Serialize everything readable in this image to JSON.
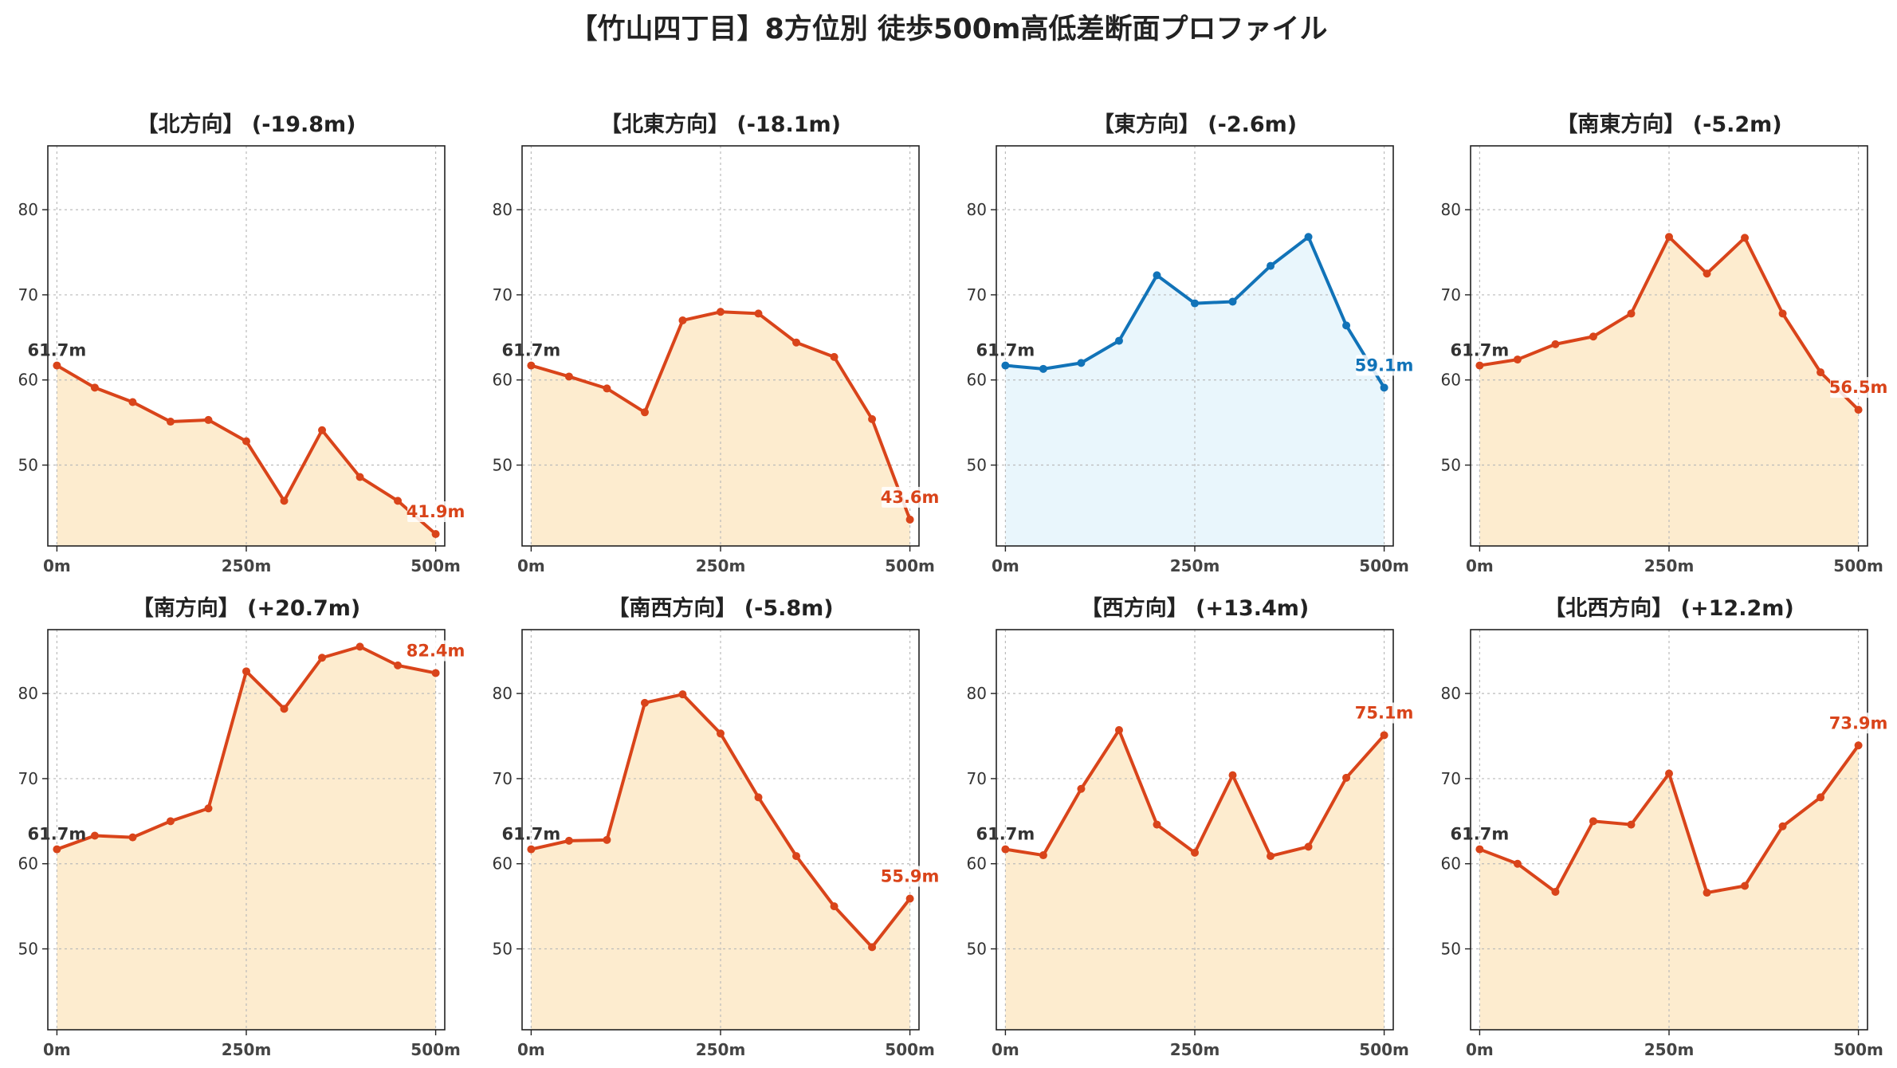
{
  "title": "【竹山四丁目】8方位別 徒歩500m高低差断面プロファイル",
  "colors": {
    "down_line": "#d9441a",
    "down_fill": "#fdeccf",
    "up_line": "#1173b8",
    "up_fill": "#e9f6fc",
    "start_label": "#333333"
  },
  "chart_data": [
    {
      "type": "area",
      "title": "【北方向】 (-19.8m)",
      "x": [
        0,
        50,
        100,
        150,
        200,
        250,
        300,
        350,
        400,
        450,
        500
      ],
      "y": [
        61.7,
        59.1,
        57.4,
        55.1,
        55.3,
        52.8,
        45.8,
        54.1,
        48.6,
        45.8,
        41.9
      ],
      "x_ticks": [
        "0m",
        "250m",
        "500m"
      ],
      "y_ticks": [
        "50",
        "60",
        "70",
        "80"
      ],
      "ylim": [
        40.5,
        87.5
      ],
      "xlim": [
        -12,
        512
      ],
      "grid": true,
      "start_label": "61.7m",
      "end_label": "41.9m",
      "style": "down"
    },
    {
      "type": "area",
      "title": "【北東方向】 (-18.1m)",
      "x": [
        0,
        50,
        100,
        150,
        200,
        250,
        300,
        350,
        400,
        450,
        500
      ],
      "y": [
        61.7,
        60.4,
        59.0,
        56.2,
        67.0,
        68.0,
        67.8,
        64.4,
        62.7,
        55.4,
        43.6
      ],
      "x_ticks": [
        "0m",
        "250m",
        "500m"
      ],
      "y_ticks": [
        "50",
        "60",
        "70",
        "80"
      ],
      "ylim": [
        40.5,
        87.5
      ],
      "xlim": [
        -12,
        512
      ],
      "grid": true,
      "start_label": "61.7m",
      "end_label": "43.6m",
      "style": "down"
    },
    {
      "type": "area",
      "title": "【東方向】 (-2.6m)",
      "x": [
        0,
        50,
        100,
        150,
        200,
        250,
        300,
        350,
        400,
        450,
        500
      ],
      "y": [
        61.7,
        61.3,
        62.0,
        64.6,
        72.3,
        69.0,
        69.2,
        73.4,
        76.8,
        66.4,
        59.1
      ],
      "x_ticks": [
        "0m",
        "250m",
        "500m"
      ],
      "y_ticks": [
        "50",
        "60",
        "70",
        "80"
      ],
      "ylim": [
        40.5,
        87.5
      ],
      "xlim": [
        -12,
        512
      ],
      "grid": true,
      "start_label": "61.7m",
      "end_label": "59.1m",
      "style": "up"
    },
    {
      "type": "area",
      "title": "【南東方向】 (-5.2m)",
      "x": [
        0,
        50,
        100,
        150,
        200,
        250,
        300,
        350,
        400,
        450,
        500
      ],
      "y": [
        61.7,
        62.4,
        64.2,
        65.1,
        67.8,
        76.8,
        72.5,
        76.7,
        67.8,
        60.9,
        56.5
      ],
      "x_ticks": [
        "0m",
        "250m",
        "500m"
      ],
      "y_ticks": [
        "50",
        "60",
        "70",
        "80"
      ],
      "ylim": [
        40.5,
        87.5
      ],
      "xlim": [
        -12,
        512
      ],
      "grid": true,
      "start_label": "61.7m",
      "end_label": "56.5m",
      "style": "down"
    },
    {
      "type": "area",
      "title": "【南方向】 (+20.7m)",
      "x": [
        0,
        50,
        100,
        150,
        200,
        250,
        300,
        350,
        400,
        450,
        500
      ],
      "y": [
        61.7,
        63.3,
        63.1,
        65.0,
        66.5,
        82.6,
        78.2,
        84.2,
        85.5,
        83.3,
        82.4
      ],
      "x_ticks": [
        "0m",
        "250m",
        "500m"
      ],
      "y_ticks": [
        "50",
        "60",
        "70",
        "80"
      ],
      "ylim": [
        40.5,
        87.5
      ],
      "xlim": [
        -12,
        512
      ],
      "grid": true,
      "start_label": "61.7m",
      "end_label": "82.4m",
      "style": "down"
    },
    {
      "type": "area",
      "title": "【南西方向】 (-5.8m)",
      "x": [
        0,
        50,
        100,
        150,
        200,
        250,
        300,
        350,
        400,
        450,
        500
      ],
      "y": [
        61.7,
        62.7,
        62.8,
        78.9,
        79.9,
        75.3,
        67.8,
        60.9,
        55.0,
        50.2,
        55.9
      ],
      "x_ticks": [
        "0m",
        "250m",
        "500m"
      ],
      "y_ticks": [
        "50",
        "60",
        "70",
        "80"
      ],
      "ylim": [
        40.5,
        87.5
      ],
      "xlim": [
        -12,
        512
      ],
      "grid": true,
      "start_label": "61.7m",
      "end_label": "55.9m",
      "style": "down"
    },
    {
      "type": "area",
      "title": "【西方向】 (+13.4m)",
      "x": [
        0,
        50,
        100,
        150,
        200,
        250,
        300,
        350,
        400,
        450,
        500
      ],
      "y": [
        61.7,
        61.0,
        68.8,
        75.7,
        64.6,
        61.3,
        70.4,
        60.9,
        62.0,
        70.1,
        75.1
      ],
      "x_ticks": [
        "0m",
        "250m",
        "500m"
      ],
      "y_ticks": [
        "50",
        "60",
        "70",
        "80"
      ],
      "ylim": [
        40.5,
        87.5
      ],
      "xlim": [
        -12,
        512
      ],
      "grid": true,
      "start_label": "61.7m",
      "end_label": "75.1m",
      "style": "down"
    },
    {
      "type": "area",
      "title": "【北西方向】 (+12.2m)",
      "x": [
        0,
        50,
        100,
        150,
        200,
        250,
        300,
        350,
        400,
        450,
        500
      ],
      "y": [
        61.7,
        60.0,
        56.7,
        65.0,
        64.6,
        70.6,
        56.6,
        57.4,
        64.4,
        67.8,
        73.9
      ],
      "x_ticks": [
        "0m",
        "250m",
        "500m"
      ],
      "y_ticks": [
        "50",
        "60",
        "70",
        "80"
      ],
      "ylim": [
        40.5,
        87.5
      ],
      "xlim": [
        -12,
        512
      ],
      "grid": true,
      "start_label": "61.7m",
      "end_label": "73.9m",
      "style": "down"
    }
  ]
}
